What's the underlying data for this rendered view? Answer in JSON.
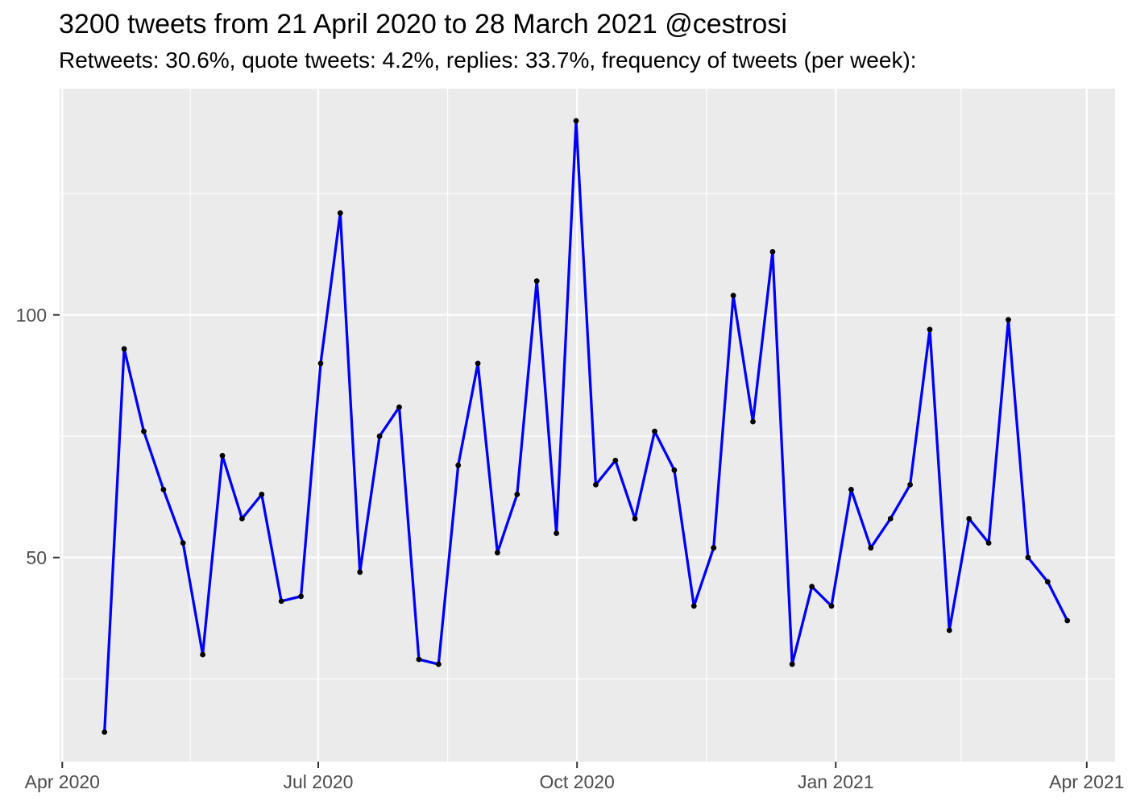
{
  "chart_data": {
    "type": "line",
    "title": "3200 tweets from 21 April 2020 to 28 March 2021 @cestrosi",
    "subtitle": "Retweets: 30.6%, quote tweets: 4.2%, replies: 33.7%, frequency of tweets (per week):",
    "xlabel": "",
    "ylabel": "",
    "legend_position": "none",
    "grid": "on",
    "x_tick_labels": [
      "Apr 2020",
      "Jul 2020",
      "Oct 2020",
      "Jan 2021",
      "Apr 2021"
    ],
    "y_tick_labels": [
      "50",
      "100"
    ],
    "y_tick_values": [
      50,
      100
    ],
    "y_minor_gridline_values": [
      25,
      75,
      125
    ],
    "ylim_approx": [
      8,
      147
    ],
    "x_dates_approx": [
      "2020-04-16",
      "2020-04-23",
      "2020-04-30",
      "2020-05-07",
      "2020-05-14",
      "2020-05-21",
      "2020-05-28",
      "2020-06-04",
      "2020-06-11",
      "2020-06-18",
      "2020-06-25",
      "2020-07-02",
      "2020-07-09",
      "2020-07-16",
      "2020-07-23",
      "2020-07-30",
      "2020-08-06",
      "2020-08-13",
      "2020-08-20",
      "2020-08-27",
      "2020-09-03",
      "2020-09-10",
      "2020-09-17",
      "2020-09-24",
      "2020-10-01",
      "2020-10-08",
      "2020-10-15",
      "2020-10-22",
      "2020-10-29",
      "2020-11-05",
      "2020-11-12",
      "2020-11-19",
      "2020-11-26",
      "2020-12-03",
      "2020-12-10",
      "2020-12-17",
      "2020-12-24",
      "2020-12-31",
      "2021-01-07",
      "2021-01-14",
      "2021-01-21",
      "2021-01-28",
      "2021-02-04",
      "2021-02-11",
      "2021-02-18",
      "2021-02-25",
      "2021-03-04",
      "2021-03-11",
      "2021-03-18",
      "2021-03-25"
    ],
    "series": [
      {
        "name": "tweets-per-week",
        "values": [
          14,
          93,
          76,
          64,
          53,
          30,
          71,
          58,
          63,
          41,
          42,
          90,
          121,
          47,
          75,
          81,
          29,
          28,
          69,
          90,
          51,
          63,
          107,
          55,
          140,
          65,
          70,
          58,
          76,
          68,
          40,
          52,
          104,
          78,
          113,
          28,
          44,
          40,
          64,
          52,
          58,
          65,
          97,
          35,
          58,
          53,
          99,
          50,
          45,
          37
        ]
      }
    ],
    "colors": {
      "line": "#0000F5",
      "point": "#000000",
      "panel_bg": "#EBEBEB",
      "grid": "#FFFFFF",
      "axis_text": "#4D4D4D",
      "tick_marks": "#333333",
      "title_text": "#000000"
    }
  }
}
